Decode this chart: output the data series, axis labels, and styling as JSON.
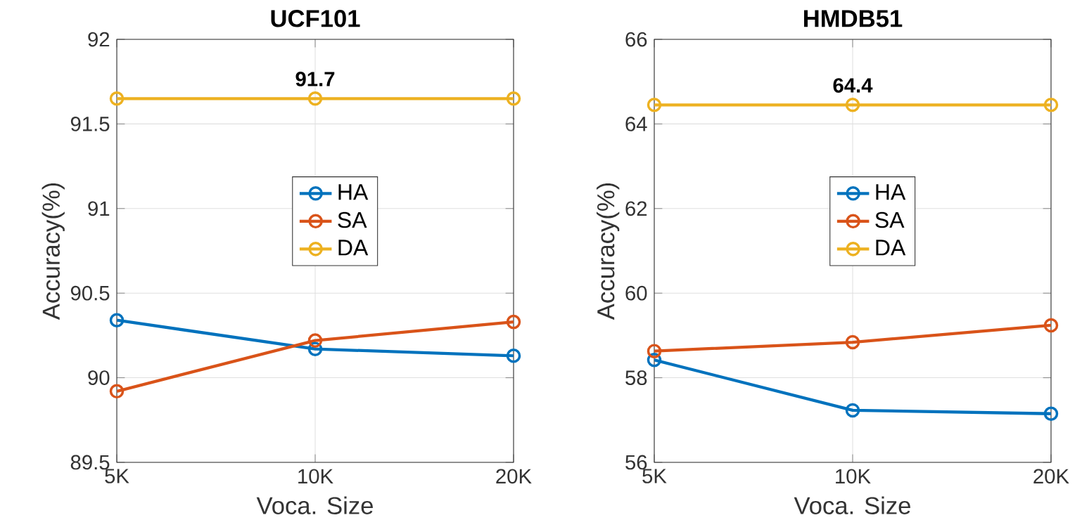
{
  "chart_data": [
    {
      "type": "line",
      "title": "UCF101",
      "xlabel": "Voca. Size",
      "ylabel": "Accuracy(%)",
      "categories": [
        "5K",
        "10K",
        "20K"
      ],
      "ylim": [
        89.5,
        92
      ],
      "yticks": [
        89.5,
        90,
        90.5,
        91,
        91.5,
        92
      ],
      "grid": true,
      "legend": "center",
      "marker": "circle",
      "annotations": [
        {
          "text": "91.7",
          "x": "10K",
          "y": 91.65
        }
      ],
      "series": [
        {
          "name": "HA",
          "color": "#0072bd",
          "values": [
            90.34,
            90.17,
            90.13
          ]
        },
        {
          "name": "SA",
          "color": "#d95319",
          "values": [
            89.92,
            90.22,
            90.33
          ]
        },
        {
          "name": "DA",
          "color": "#edb120",
          "values": [
            91.65,
            91.65,
            91.65
          ]
        }
      ]
    },
    {
      "type": "line",
      "title": "HMDB51",
      "xlabel": "Voca. Size",
      "ylabel": "Accuracy(%)",
      "categories": [
        "5K",
        "10K",
        "20K"
      ],
      "ylim": [
        56,
        66
      ],
      "yticks": [
        56,
        58,
        60,
        62,
        64,
        66
      ],
      "grid": true,
      "legend": "center",
      "marker": "circle",
      "annotations": [
        {
          "text": "64.4",
          "x": "10K",
          "y": 64.45
        }
      ],
      "series": [
        {
          "name": "HA",
          "color": "#0072bd",
          "values": [
            58.42,
            57.23,
            57.15
          ]
        },
        {
          "name": "SA",
          "color": "#d95319",
          "values": [
            58.63,
            58.84,
            59.24
          ]
        },
        {
          "name": "DA",
          "color": "#edb120",
          "values": [
            64.45,
            64.45,
            64.45
          ]
        }
      ]
    }
  ]
}
